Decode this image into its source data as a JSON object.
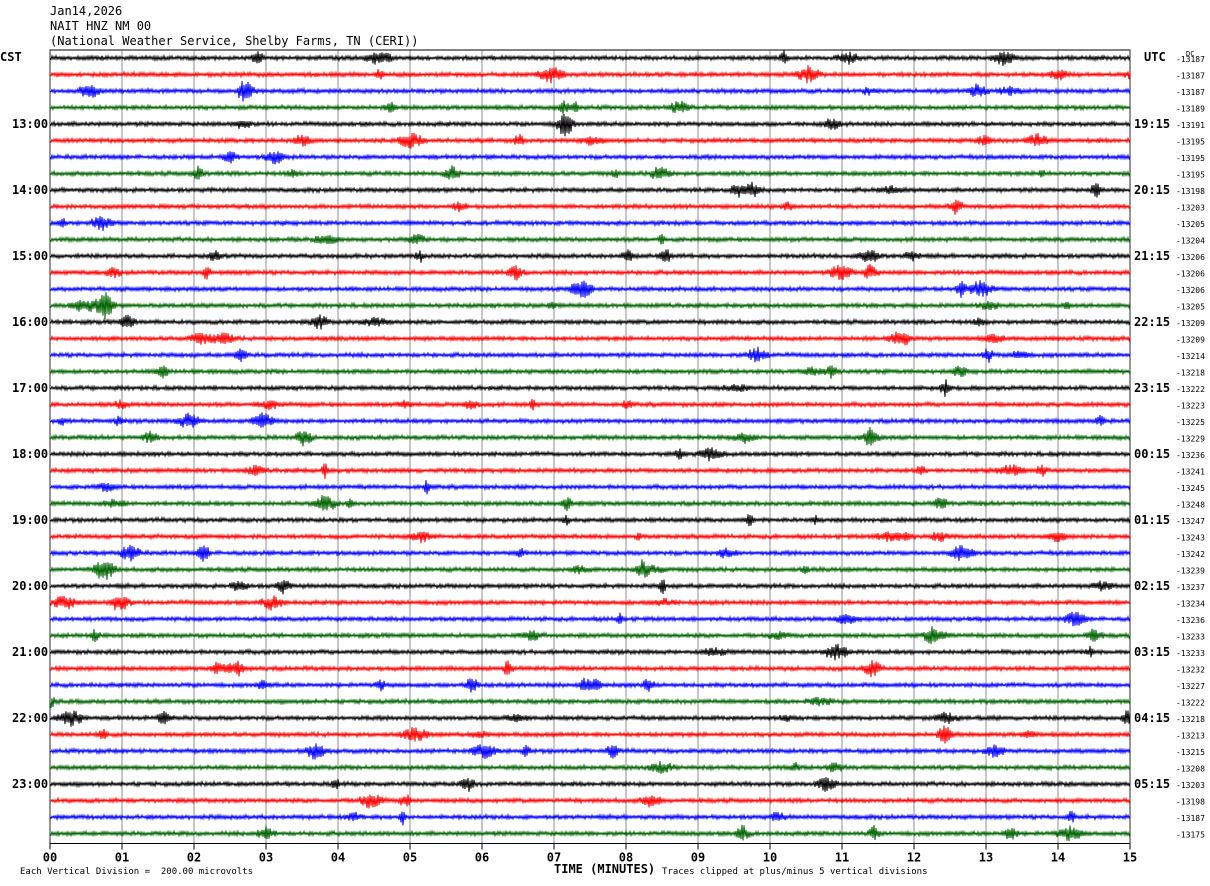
{
  "header": {
    "date": "Jan14,2026",
    "station": "NAIT HNZ NM 00",
    "source": "(National Weather Service, Shelby Farms, TN (CERI))"
  },
  "chart_data": {
    "type": "line",
    "subtype": "helicorder",
    "left_timezone": "CST",
    "right_timezone": "UTC",
    "dc_label": "DC",
    "left_hour_labels": [
      "13:00",
      "14:00",
      "15:00",
      "16:00",
      "17:00",
      "18:00",
      "19:00",
      "20:00",
      "21:00",
      "22:00",
      "23:00"
    ],
    "right_hour_labels": [
      "19:15",
      "20:15",
      "21:15",
      "22:15",
      "23:15",
      "00:15",
      "01:15",
      "02:15",
      "03:15",
      "04:15",
      "05:15"
    ],
    "x_ticks": [
      "00",
      "01",
      "02",
      "03",
      "04",
      "05",
      "06",
      "07",
      "08",
      "09",
      "10",
      "11",
      "12",
      "13",
      "14",
      "15"
    ],
    "xlabel": "TIME (MINUTES)",
    "xlim": [
      0,
      15
    ],
    "trace_colors": [
      "#000000",
      "#ff0000",
      "#0000ff",
      "#006400"
    ],
    "dc_offsets": [
      -13187,
      -13187,
      -13187,
      -13189,
      -13191,
      -13195,
      -13195,
      -13195,
      -13198,
      -13203,
      -13205,
      -13204,
      -13206,
      -13206,
      -13206,
      -13205,
      -13209,
      -13209,
      -13214,
      -13218,
      -13222,
      -13223,
      -13225,
      -13229,
      -13236,
      -13241,
      -13245,
      -13248,
      -13247,
      -13243,
      -13242,
      -13239,
      -13237,
      -13234,
      -13236,
      -13233,
      -13233,
      -13232,
      -13227,
      -13222,
      -13218,
      -13213,
      -13215,
      -13208,
      -13203,
      -13198,
      -13187,
      -13175
    ],
    "grid": true,
    "scale_note": "Each Vertical Division =  200.00 microvolts",
    "clip_note": "Traces clipped at plus/minus 5 vertical divisions"
  }
}
